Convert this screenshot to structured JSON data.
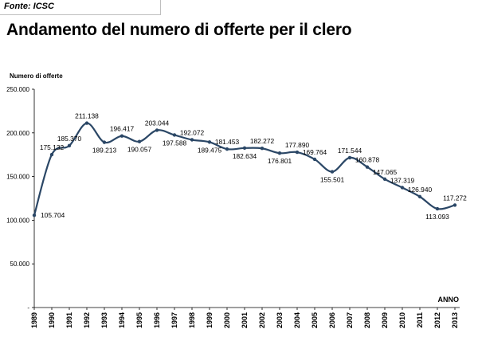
{
  "source": "Fonte: ICSC",
  "title": "Andamento del numero di offerte per il clero",
  "chart_data": {
    "type": "line",
    "title": "Andamento del numero di offerte per il clero",
    "ylabel": "Numero di offerte",
    "xlabel": "ANNO",
    "ylim": [
      0,
      250000
    ],
    "yticks": [
      0,
      50000,
      100000,
      150000,
      200000,
      250000
    ],
    "ytick_labels": [
      "-",
      "50.000",
      "100.000",
      "150.000",
      "200.000",
      "250.000"
    ],
    "categories": [
      "1989",
      "1990",
      "1991",
      "1992",
      "1993",
      "1994",
      "1995",
      "1996",
      "1997",
      "1998",
      "1999",
      "2000",
      "2001",
      "2002",
      "2003",
      "2004",
      "2005",
      "2006",
      "2007",
      "2008",
      "2009",
      "2010",
      "2011",
      "2012",
      "2013"
    ],
    "values": [
      105704,
      175132,
      185370,
      211138,
      189213,
      196417,
      190057,
      203044,
      197588,
      192072,
      189475,
      181453,
      182634,
      182272,
      176801,
      177890,
      169764,
      155501,
      171544,
      160878,
      147065,
      137319,
      126940,
      113093,
      117272
    ],
    "value_labels": [
      "105.704",
      "175.132",
      "185.370",
      "211.138",
      "189.213",
      "196.417",
      "190.057",
      "203.044",
      "197.588",
      "192.072",
      "189.475",
      "181.453",
      "182.634",
      "182.272",
      "176.801",
      "177.890",
      "169.764",
      "155.501",
      "171.544",
      "160.878",
      "147.065",
      "137.319",
      "126.940",
      "113.093",
      "117.272"
    ],
    "series_color": "#2b4766"
  }
}
